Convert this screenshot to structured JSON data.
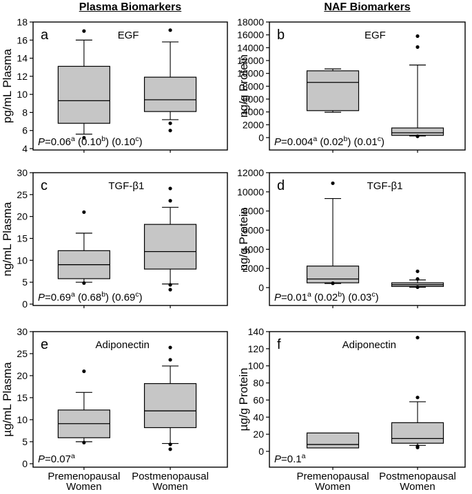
{
  "page": {
    "column_headers": [
      {
        "label": "Plasma Biomarkers"
      },
      {
        "label": "NAF Biomarkers"
      }
    ]
  },
  "x_axis": {
    "labels": [
      [
        "Premenopausal",
        "Women"
      ],
      [
        "Postmenopausal",
        "Women"
      ]
    ]
  },
  "style": {
    "box_fill": "#c6c6c6",
    "line_color": "#000000",
    "frame_color": "#000000",
    "background": "#ffffff"
  },
  "chart_data": [
    {
      "type": "boxplot",
      "panel_letter": "a",
      "group": "Plasma Biomarkers",
      "title": "EGF",
      "ylabel": "pg/mL Plasma",
      "ylim": [
        4,
        18
      ],
      "yticks": [
        4,
        6,
        8,
        10,
        12,
        14,
        16,
        18
      ],
      "categories": [
        "Premenopausal Women",
        "Postmenopausal Women"
      ],
      "p_value_text": "P=0.06a (0.10b) (0.10c)",
      "p_segments": [
        {
          "text": "P",
          "style": "italic"
        },
        {
          "text": "=0.06",
          "style": "normal"
        },
        {
          "text": "a",
          "style": "sup"
        },
        {
          "text": " (0.10",
          "style": "normal"
        },
        {
          "text": "b",
          "style": "sup"
        },
        {
          "text": ") (0.10",
          "style": "normal"
        },
        {
          "text": "c",
          "style": "sup"
        },
        {
          "text": ")",
          "style": "normal"
        }
      ],
      "boxes": [
        {
          "category": "Premenopausal Women",
          "whisker_low": 5.6,
          "q1": 6.8,
          "median": 9.3,
          "q3": 13.1,
          "whisker_high": 16.0,
          "outliers": [
            17.0,
            5.2
          ]
        },
        {
          "category": "Postmenopausal Women",
          "whisker_low": 7.2,
          "q1": 8.1,
          "median": 9.4,
          "q3": 11.9,
          "whisker_high": 15.8,
          "outliers": [
            17.1,
            6.8,
            6.0
          ]
        }
      ]
    },
    {
      "type": "boxplot",
      "panel_letter": "b",
      "group": "NAF Biomarkers",
      "title": "EGF",
      "ylabel": "ng/g Protein",
      "ylim": [
        0,
        18000
      ],
      "yticks": [
        0,
        2000,
        4000,
        6000,
        8000,
        10000,
        12000,
        14000,
        16000,
        18000
      ],
      "categories": [
        "Premenopausal Women",
        "Postmenopausal Women"
      ],
      "p_value_text": "P=0.004a (0.02b) (0.01c)",
      "p_segments": [
        {
          "text": "P",
          "style": "italic"
        },
        {
          "text": "=0.004",
          "style": "normal"
        },
        {
          "text": "a",
          "style": "sup"
        },
        {
          "text": " (0.02",
          "style": "normal"
        },
        {
          "text": "b",
          "style": "sup"
        },
        {
          "text": ") (0.01",
          "style": "normal"
        },
        {
          "text": "c",
          "style": "sup"
        },
        {
          "text": ")",
          "style": "normal"
        }
      ],
      "boxes": [
        {
          "category": "Premenopausal Women",
          "whisker_low": 3950,
          "q1": 4200,
          "median": 8600,
          "q3": 10400,
          "whisker_high": 10700,
          "outliers": []
        },
        {
          "category": "Postmenopausal Women",
          "whisker_low": 250,
          "q1": 350,
          "median": 750,
          "q3": 1500,
          "whisker_high": 11300,
          "outliers": [
            15800,
            14100,
            200
          ]
        }
      ]
    },
    {
      "type": "boxplot",
      "panel_letter": "c",
      "group": "Plasma Biomarkers",
      "title": "TGF-β1",
      "ylabel": "ng/mL Plasma",
      "ylim": [
        0,
        30
      ],
      "yticks": [
        0,
        5,
        10,
        15,
        20,
        25,
        30
      ],
      "categories": [
        "Premenopausal Women",
        "Postmenopausal Women"
      ],
      "p_value_text": "P=0.69a (0.68b) (0.69c)",
      "p_segments": [
        {
          "text": "P",
          "style": "italic"
        },
        {
          "text": "=0.69",
          "style": "normal"
        },
        {
          "text": "a",
          "style": "sup"
        },
        {
          "text": " (0.68",
          "style": "normal"
        },
        {
          "text": "b",
          "style": "sup"
        },
        {
          "text": ") (0.69",
          "style": "normal"
        },
        {
          "text": "c",
          "style": "sup"
        },
        {
          "text": ")",
          "style": "normal"
        }
      ],
      "boxes": [
        {
          "category": "Premenopausal Women",
          "whisker_low": 5.0,
          "q1": 5.8,
          "median": 9.0,
          "q3": 12.2,
          "whisker_high": 16.2,
          "outliers": [
            21.0,
            4.8
          ]
        },
        {
          "category": "Postmenopausal Women",
          "whisker_low": 4.6,
          "q1": 8.0,
          "median": 12.0,
          "q3": 18.2,
          "whisker_high": 22.1,
          "outliers": [
            26.4,
            23.6,
            4.4,
            3.3
          ]
        }
      ]
    },
    {
      "type": "boxplot",
      "panel_letter": "d",
      "group": "NAF Biomarkers",
      "title": "TGF-β1",
      "ylabel": "ng/g Protein",
      "ylim": [
        0,
        12000
      ],
      "yticks": [
        0,
        2000,
        4000,
        6000,
        8000,
        10000,
        12000
      ],
      "categories": [
        "Premenopausal Women",
        "Postmenopausal Women"
      ],
      "p_value_text": "P=0.01a (0.02b) (0.03c)",
      "p_segments": [
        {
          "text": "P",
          "style": "italic"
        },
        {
          "text": "=0.01",
          "style": "normal"
        },
        {
          "text": "a",
          "style": "sup"
        },
        {
          "text": " (0.02",
          "style": "normal"
        },
        {
          "text": "b",
          "style": "sup"
        },
        {
          "text": ") (0.03",
          "style": "normal"
        },
        {
          "text": "c",
          "style": "sup"
        },
        {
          "text": ")",
          "style": "normal"
        }
      ],
      "boxes": [
        {
          "category": "Premenopausal Women",
          "whisker_low": 430,
          "q1": 500,
          "median": 900,
          "q3": 2250,
          "whisker_high": 9300,
          "outliers": [
            10900,
            450
          ]
        },
        {
          "category": "Postmenopausal Women",
          "whisker_low": 40,
          "q1": 120,
          "median": 300,
          "q3": 500,
          "whisker_high": 800,
          "outliers": [
            1700,
            900,
            40
          ]
        }
      ]
    },
    {
      "type": "boxplot",
      "panel_letter": "e",
      "group": "Plasma Biomarkers",
      "title": "Adiponectin",
      "ylabel": "µg/mL Plasma",
      "ylim": [
        0,
        30
      ],
      "yticks": [
        0,
        5,
        10,
        15,
        20,
        25,
        30
      ],
      "categories": [
        "Premenopausal Women",
        "Postmenopausal Women"
      ],
      "p_value_text": "P=0.07a",
      "p_segments": [
        {
          "text": "P",
          "style": "italic"
        },
        {
          "text": "=0.07",
          "style": "normal"
        },
        {
          "text": "a",
          "style": "sup"
        }
      ],
      "boxes": [
        {
          "category": "Premenopausal Women",
          "whisker_low": 5.0,
          "q1": 5.9,
          "median": 9.1,
          "q3": 12.2,
          "whisker_high": 16.2,
          "outliers": [
            21.0,
            4.8
          ]
        },
        {
          "category": "Postmenopausal Women",
          "whisker_low": 4.6,
          "q1": 8.2,
          "median": 12.0,
          "q3": 18.2,
          "whisker_high": 22.2,
          "outliers": [
            26.4,
            23.6,
            4.4,
            3.3
          ]
        }
      ]
    },
    {
      "type": "boxplot",
      "panel_letter": "f",
      "group": "NAF Biomarkers",
      "title": "Adiponectin",
      "ylabel": "µg/g Protein",
      "ylim": [
        0,
        140
      ],
      "yticks": [
        0,
        20,
        40,
        60,
        80,
        100,
        120,
        140
      ],
      "categories": [
        "Premenopausal Women",
        "Postmenopausal Women"
      ],
      "p_value_text": "P=0.1a",
      "p_segments": [
        {
          "text": "P",
          "style": "italic"
        },
        {
          "text": "=0.1",
          "style": "normal"
        },
        {
          "text": "a",
          "style": "sup"
        }
      ],
      "boxes": [
        {
          "category": "Premenopausal Women",
          "whisker_low": 4,
          "q1": 4,
          "median": 8,
          "q3": 21.5,
          "whisker_high": 21.5,
          "outliers": []
        },
        {
          "category": "Postmenopausal Women",
          "whisker_low": 7,
          "q1": 9.5,
          "median": 15,
          "q3": 33.5,
          "whisker_high": 58,
          "outliers": [
            133,
            63,
            6,
            4.5
          ]
        }
      ]
    }
  ]
}
